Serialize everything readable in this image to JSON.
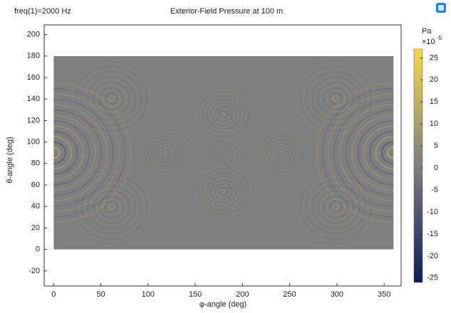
{
  "chart_data": {
    "type": "heatmap",
    "title": "Exterior-Field Pressure at 100 m",
    "annotation": "freq(1)=2000 Hz",
    "xlabel": "φ-angle (deg)",
    "ylabel": "θ-angle (deg)",
    "xlim": [
      -10,
      368
    ],
    "ylim": [
      -34,
      209
    ],
    "xticks": [
      0,
      50,
      100,
      150,
      200,
      250,
      300,
      350
    ],
    "yticks": [
      -20,
      0,
      20,
      40,
      60,
      80,
      100,
      120,
      140,
      160,
      180,
      200
    ],
    "extent": [
      0,
      360,
      0,
      180
    ],
    "colorbar": {
      "title": "Pa",
      "unit": "×10",
      "unit_exponent": "-5",
      "clim": [
        -26,
        27
      ],
      "ticks": [
        -25,
        -20,
        -15,
        -10,
        -5,
        0,
        5,
        10,
        15,
        20,
        25
      ],
      "colormap": [
        "#0b1d5a",
        "#7f7f7f",
        "#f6d84a"
      ]
    }
  }
}
